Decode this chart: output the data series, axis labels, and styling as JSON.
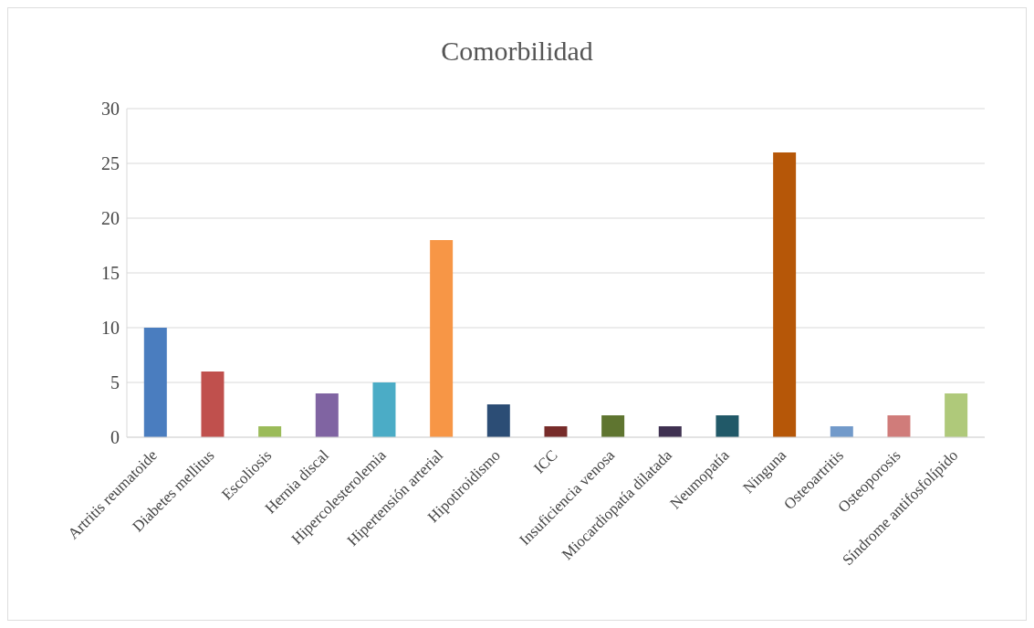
{
  "chart_data": {
    "type": "bar",
    "title": "Comorbilidad",
    "categories": [
      "Artritis reumatoide",
      "Diabetes mellitus",
      "Escoliosis",
      "Hernia discal",
      "Hipercolesterolemia",
      "Hipertensión arterial",
      "Hipotiroidismo",
      "ICC",
      "Insuficiencia venosa",
      "Miocardiopatía dilatada",
      "Neumopatía",
      "Ninguna",
      "Osteoartritis",
      "Osteoporosis",
      "Síndrome antifosfolípido"
    ],
    "values": [
      10,
      6,
      1,
      4,
      5,
      18,
      3,
      1,
      2,
      1,
      2,
      26,
      1,
      2,
      4
    ],
    "colors": [
      "#4a7dbf",
      "#c0504d",
      "#9bbb59",
      "#8064a2",
      "#4bacc6",
      "#f79646",
      "#2c4d75",
      "#772c2a",
      "#5f7530",
      "#3f3151",
      "#215968",
      "#b65708",
      "#729aca",
      "#d07c7a",
      "#afc97a"
    ],
    "ylim": [
      0,
      30
    ],
    "yticks": [
      0,
      5,
      10,
      15,
      20,
      25,
      30
    ],
    "grid": "y"
  }
}
